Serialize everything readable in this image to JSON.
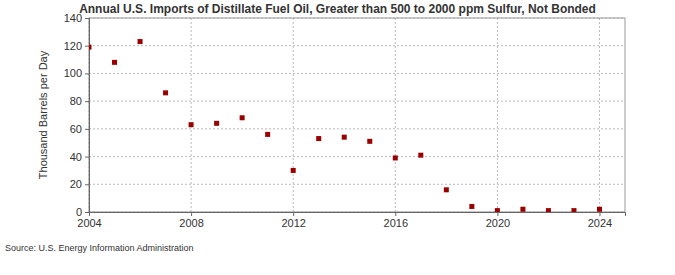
{
  "chart_data": {
    "type": "scatter",
    "title": "Annual U.S. Imports of Distillate Fuel Oil, Greater than 500 to 2000 ppm Sulfur, Not Bonded",
    "y_label": "Thousand Barrels per Day",
    "source": "Source: U.S. Energy Information Administration",
    "x": [
      2004,
      2005,
      2006,
      2007,
      2008,
      2009,
      2010,
      2011,
      2012,
      2013,
      2014,
      2015,
      2016,
      2017,
      2018,
      2019,
      2020,
      2021,
      2022,
      2023,
      2024
    ],
    "values": [
      119,
      108,
      123,
      86,
      63,
      64,
      68,
      56,
      30,
      53,
      54,
      51,
      39,
      41,
      16,
      4,
      1,
      2,
      1,
      1,
      2
    ],
    "color": "#990000",
    "marker": "square",
    "xlim": [
      2004,
      2025
    ],
    "xticks": [
      2004,
      2008,
      2012,
      2016,
      2020,
      2024
    ],
    "ylim": [
      0,
      140
    ],
    "yticks": [
      0,
      20,
      40,
      60,
      80,
      100,
      120,
      140
    ],
    "grid": true
  }
}
